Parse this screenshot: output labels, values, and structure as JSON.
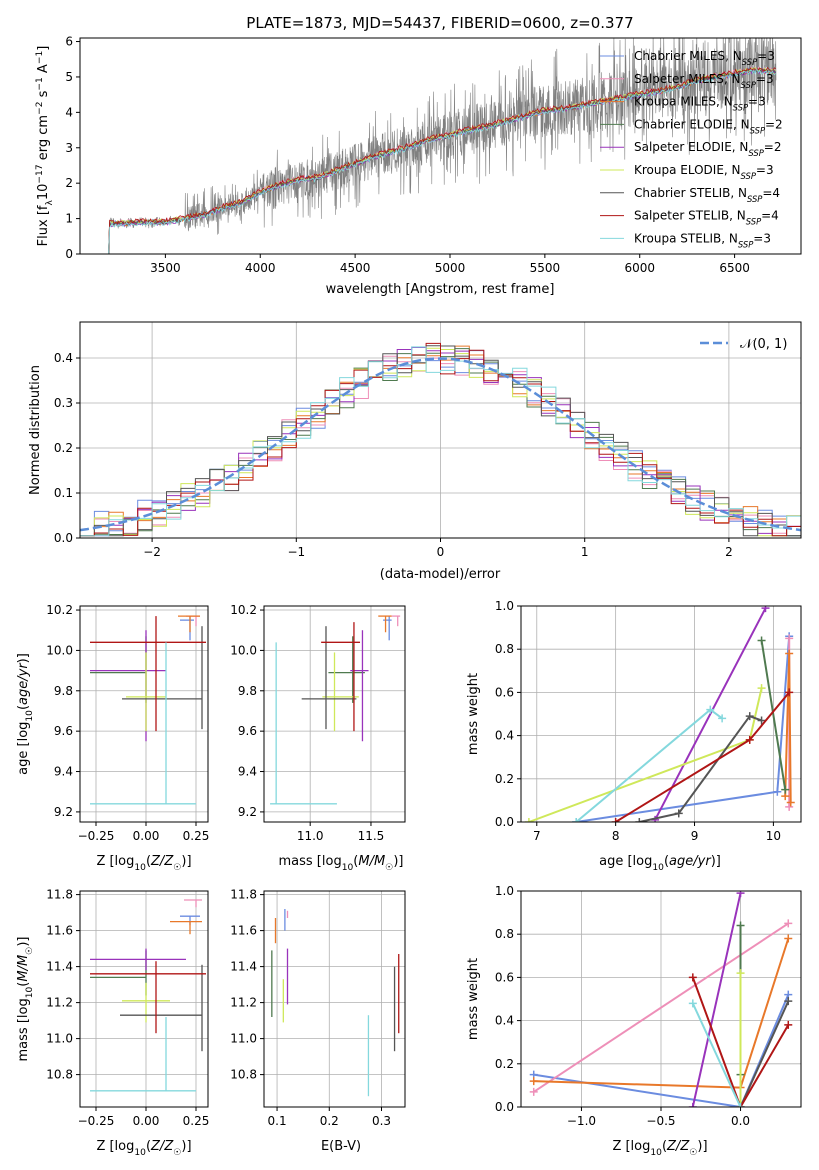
{
  "title": "PLATE=1873, MJD=54437, FIBERID=0600, z=0.377",
  "colors": {
    "grid": "#b0b0b0",
    "Chabrier MILES": "#6b8ce0",
    "Salpeter MILES": "#ee8fb8",
    "Kroupa MILES": "#e8782a",
    "Chabrier ELODIE": "#4f7a4f",
    "Salpeter ELODIE": "#9933bb",
    "Kroupa ELODIE": "#cfe85a",
    "Chabrier STELIB": "#555555",
    "Salpeter STELIB": "#b01616",
    "Kroupa STELIB": "#84d8dd",
    "data": "#808080",
    "normal": "#5b8ed8"
  },
  "legend_spectrum": [
    {
      "key": "Chabrier MILES",
      "label": "Chabrier MILES, N",
      "sub": "SSP",
      "tail": "=3"
    },
    {
      "key": "Salpeter MILES",
      "label": "Salpeter MILES, N",
      "sub": "SSP",
      "tail": "=3"
    },
    {
      "key": "Kroupa MILES",
      "label": "Kroupa MILES, N",
      "sub": "SSP",
      "tail": "=3"
    },
    {
      "key": "Chabrier ELODIE",
      "label": "Chabrier ELODIE, N",
      "sub": "SSP",
      "tail": "=2"
    },
    {
      "key": "Salpeter ELODIE",
      "label": "Salpeter ELODIE, N",
      "sub": "SSP",
      "tail": "=2"
    },
    {
      "key": "Kroupa ELODIE",
      "label": "Kroupa ELODIE, N",
      "sub": "SSP",
      "tail": "=3"
    },
    {
      "key": "Chabrier STELIB",
      "label": "Chabrier STELIB, N",
      "sub": "SSP",
      "tail": "=4"
    },
    {
      "key": "Salpeter STELIB",
      "label": "Salpeter STELIB, N",
      "sub": "SSP",
      "tail": "=4"
    },
    {
      "key": "Kroupa STELIB",
      "label": "Kroupa STELIB, N",
      "sub": "SSP",
      "tail": "=3"
    }
  ],
  "legend_hist": {
    "label": "𝒩(0, 1)"
  },
  "chart_data": [
    {
      "id": "spectrum",
      "type": "line",
      "title": "PLATE=1873, MJD=54437, FIBERID=0600, z=0.377",
      "xlabel": "wavelength [Angstrom, rest frame]",
      "ylabel": "Flux [f_λ 10^-17 erg cm^-2 s^-1 A^-1]",
      "xlim": [
        3050,
        6850
      ],
      "ylim": [
        0,
        6.1
      ],
      "xticks": [
        3500,
        4000,
        4500,
        5000,
        5500,
        6000,
        6500
      ],
      "yticks": [
        0,
        1,
        2,
        3,
        4,
        5,
        6
      ],
      "continuum": {
        "x": [
          3200,
          3400,
          3500,
          3600,
          3700,
          3800,
          3900,
          4000,
          4100,
          4200,
          4300,
          4400,
          4500,
          4600,
          4700,
          4800,
          4900,
          5000,
          5100,
          5200,
          5300,
          5400,
          5500,
          5600,
          5700,
          5800,
          5900,
          6000,
          6100,
          6200,
          6300,
          6400,
          6500,
          6600,
          6700
        ],
        "y": [
          0.85,
          0.9,
          0.9,
          1.0,
          1.1,
          1.3,
          1.45,
          1.75,
          1.95,
          2.1,
          2.15,
          2.35,
          2.55,
          2.75,
          2.9,
          3.05,
          3.25,
          3.35,
          3.5,
          3.6,
          3.75,
          3.9,
          4.05,
          4.1,
          4.2,
          4.3,
          4.4,
          4.5,
          4.6,
          4.7,
          4.9,
          5.0,
          5.1,
          5.2,
          5.15
        ]
      }
    },
    {
      "id": "residuals",
      "type": "bar",
      "xlabel": "(data-model)/error",
      "ylabel": "Normed distribution",
      "xlim": [
        -2.5,
        2.5
      ],
      "ylim": [
        0,
        0.48
      ],
      "xticks": [
        -2,
        -1,
        0,
        1,
        2
      ],
      "yticks": [
        0.0,
        0.1,
        0.2,
        0.3,
        0.4
      ],
      "bin_width": 0.1
    },
    {
      "id": "age_vs_Z",
      "type": "scatter",
      "xlabel": "Z [log10(Z/Z☉)]",
      "ylabel": "age [log10(age/yr)]",
      "xlim": [
        -0.33,
        0.31
      ],
      "ylim": [
        9.15,
        10.22
      ],
      "xticks": [
        -0.25,
        0.0,
        0.25
      ],
      "yticks": [
        9.2,
        9.4,
        9.6,
        9.8,
        10.0,
        10.2
      ],
      "errorbars": [
        {
          "key": "Chabrier MILES",
          "x": 0.22,
          "xerr": [
            0.05,
            0.02
          ],
          "y": 10.15,
          "yerr": [
            0.1,
            0.02
          ]
        },
        {
          "key": "Salpeter MILES",
          "x": 0.25,
          "xerr": [
            0.05,
            0.02
          ],
          "y": 10.17,
          "yerr": [
            0.05,
            0.0
          ]
        },
        {
          "key": "Kroupa MILES",
          "x": 0.22,
          "xerr": [
            0.06,
            0.05
          ],
          "y": 10.17,
          "yerr": [
            0.08,
            0.0
          ]
        },
        {
          "key": "Chabrier ELODIE",
          "x": 0.0,
          "xerr": [
            0.28,
            0.0
          ],
          "y": 9.89,
          "yerr": [
            0.15,
            0.18
          ]
        },
        {
          "key": "Salpeter ELODIE",
          "x": 0.0,
          "xerr": [
            0.28,
            0.1
          ],
          "y": 9.9,
          "yerr": [
            0.35,
            0.2
          ]
        },
        {
          "key": "Kroupa ELODIE",
          "x": 0.0,
          "xerr": [
            0.1,
            0.1
          ],
          "y": 9.77,
          "yerr": [
            0.17,
            0.22
          ]
        },
        {
          "key": "Chabrier STELIB",
          "x": 0.28,
          "xerr": [
            0.4,
            0.0
          ],
          "y": 9.76,
          "yerr": [
            0.15,
            0.36
          ]
        },
        {
          "key": "Salpeter STELIB",
          "x": 0.05,
          "xerr": [
            0.33,
            0.25
          ],
          "y": 10.04,
          "yerr": [
            0.44,
            0.13
          ]
        },
        {
          "key": "Kroupa STELIB",
          "x": 0.1,
          "xerr": [
            0.38,
            0.15
          ],
          "y": 9.24,
          "yerr": [
            0.0,
            0.8
          ]
        }
      ]
    },
    {
      "id": "age_vs_mass",
      "type": "scatter",
      "xlabel": "mass [log10(M/M☉)]",
      "xlim": [
        10.62,
        11.78
      ],
      "ylim": [
        9.15,
        10.22
      ],
      "xticks": [
        11.0,
        11.5
      ],
      "yticks": [
        9.2,
        9.4,
        9.6,
        9.8,
        10.0,
        10.2
      ],
      "errorbars": [
        {
          "key": "Chabrier MILES",
          "x": 11.65,
          "xerr": [
            0.05,
            0.02
          ],
          "y": 10.15,
          "yerr": [
            0.1,
            0.02
          ]
        },
        {
          "key": "Salpeter MILES",
          "x": 11.72,
          "xerr": [
            0.05,
            0.02
          ],
          "y": 10.17,
          "yerr": [
            0.05,
            0.0
          ]
        },
        {
          "key": "Kroupa MILES",
          "x": 11.62,
          "xerr": [
            0.06,
            0.05
          ],
          "y": 10.17,
          "yerr": [
            0.08,
            0.0
          ]
        },
        {
          "key": "Chabrier ELODIE",
          "x": 11.35,
          "xerr": [
            0.2,
            0.1
          ],
          "y": 9.89,
          "yerr": [
            0.15,
            0.18
          ]
        },
        {
          "key": "Salpeter ELODIE",
          "x": 11.43,
          "xerr": [
            0.1,
            0.05
          ],
          "y": 9.9,
          "yerr": [
            0.35,
            0.2
          ]
        },
        {
          "key": "Kroupa ELODIE",
          "x": 11.2,
          "xerr": [
            0.1,
            0.2
          ],
          "y": 9.77,
          "yerr": [
            0.17,
            0.22
          ]
        },
        {
          "key": "Chabrier STELIB",
          "x": 11.13,
          "xerr": [
            0.2,
            0.25
          ],
          "y": 9.76,
          "yerr": [
            0.15,
            0.36
          ]
        },
        {
          "key": "Salpeter STELIB",
          "x": 11.36,
          "xerr": [
            0.27,
            0.05
          ],
          "y": 10.04,
          "yerr": [
            0.44,
            0.1
          ]
        },
        {
          "key": "Kroupa STELIB",
          "x": 10.72,
          "xerr": [
            0.05,
            0.5
          ],
          "y": 9.24,
          "yerr": [
            0.0,
            0.8
          ]
        }
      ]
    },
    {
      "id": "weight_vs_age",
      "type": "line",
      "xlabel": "age [log10(age/yr)]",
      "ylabel": "mass weight",
      "xlim": [
        6.8,
        10.35
      ],
      "ylim": [
        0,
        1.0
      ],
      "xticks": [
        7,
        8,
        9,
        10
      ],
      "yticks": [
        0.0,
        0.2,
        0.4,
        0.6,
        0.8,
        1.0
      ],
      "series": [
        {
          "key": "Chabrier MILES",
          "x": [
            7.5,
            10.05,
            10.2
          ],
          "y": [
            0.0,
            0.14,
            0.86
          ]
        },
        {
          "key": "Salpeter MILES",
          "x": [
            10.2,
            10.2
          ],
          "y": [
            0.07,
            0.85
          ]
        },
        {
          "key": "Kroupa MILES",
          "x": [
            10.15,
            10.2,
            10.22
          ],
          "y": [
            0.12,
            0.78,
            0.09
          ]
        },
        {
          "key": "Chabrier ELODIE",
          "x": [
            9.85,
            10.15
          ],
          "y": [
            0.84,
            0.15
          ]
        },
        {
          "key": "Salpeter ELODIE",
          "x": [
            8.5,
            9.9
          ],
          "y": [
            0.01,
            0.99
          ]
        },
        {
          "key": "Kroupa ELODIE",
          "x": [
            6.9,
            9.7,
            9.85
          ],
          "y": [
            0.0,
            0.38,
            0.62
          ]
        },
        {
          "key": "Chabrier STELIB",
          "x": [
            8.3,
            8.8,
            9.7,
            9.85
          ],
          "y": [
            0.0,
            0.04,
            0.49,
            0.47
          ]
        },
        {
          "key": "Salpeter STELIB",
          "x": [
            8.0,
            9.7,
            10.2
          ],
          "y": [
            0.0,
            0.38,
            0.6
          ]
        },
        {
          "key": "Kroupa STELIB",
          "x": [
            7.5,
            9.2,
            9.35
          ],
          "y": [
            0.0,
            0.52,
            0.48
          ]
        }
      ]
    },
    {
      "id": "mass_vs_Z",
      "type": "scatter",
      "xlabel": "Z [log10(Z/Z☉)]",
      "ylabel": "mass [log10(M/M☉)]",
      "xlim": [
        -0.33,
        0.31
      ],
      "ylim": [
        10.62,
        11.82
      ],
      "xticks": [
        -0.25,
        0.0,
        0.25
      ],
      "yticks": [
        10.8,
        11.0,
        11.2,
        11.4,
        11.6,
        11.8
      ],
      "errorbars": [
        {
          "key": "Chabrier MILES",
          "x": 0.22,
          "xerr": [
            0.05,
            0.05
          ],
          "y": 11.68,
          "yerr": [
            0.05,
            0.0
          ]
        },
        {
          "key": "Salpeter MILES",
          "x": 0.25,
          "xerr": [
            0.06,
            0.03
          ],
          "y": 11.77,
          "yerr": [
            0.04,
            0.0
          ]
        },
        {
          "key": "Kroupa MILES",
          "x": 0.22,
          "xerr": [
            0.1,
            0.06
          ],
          "y": 11.65,
          "yerr": [
            0.07,
            0.0
          ]
        },
        {
          "key": "Chabrier ELODIE",
          "x": 0.0,
          "xerr": [
            0.28,
            0.0
          ],
          "y": 11.34,
          "yerr": [
            0.1,
            0.15
          ]
        },
        {
          "key": "Salpeter ELODIE",
          "x": 0.0,
          "xerr": [
            0.28,
            0.2
          ],
          "y": 11.44,
          "yerr": [
            0.06,
            0.06
          ]
        },
        {
          "key": "Kroupa ELODIE",
          "x": 0.0,
          "xerr": [
            0.12,
            0.12
          ],
          "y": 11.21,
          "yerr": [
            0.12,
            0.1
          ]
        },
        {
          "key": "Chabrier STELIB",
          "x": 0.28,
          "xerr": [
            0.41,
            0.0
          ],
          "y": 11.13,
          "yerr": [
            0.2,
            0.28
          ]
        },
        {
          "key": "Salpeter STELIB",
          "x": 0.05,
          "xerr": [
            0.33,
            0.25
          ],
          "y": 11.36,
          "yerr": [
            0.33,
            0.07
          ]
        },
        {
          "key": "Kroupa STELIB",
          "x": 0.1,
          "xerr": [
            0.38,
            0.15
          ],
          "y": 10.71,
          "yerr": [
            0.0,
            0.41
          ]
        }
      ]
    },
    {
      "id": "mass_vs_ebv",
      "type": "scatter",
      "xlabel": "E(B-V)",
      "xlim": [
        0.075,
        0.345
      ],
      "ylim": [
        10.62,
        11.82
      ],
      "xticks": [
        0.1,
        0.2,
        0.3
      ],
      "yticks": [
        10.8,
        11.0,
        11.2,
        11.4,
        11.6,
        11.8
      ],
      "errorbars": [
        {
          "key": "Chabrier MILES",
          "x": 0.115,
          "y": 11.65,
          "yerr": [
            0.05,
            0.07
          ]
        },
        {
          "key": "Salpeter MILES",
          "x": 0.12,
          "y": 11.69,
          "yerr": [
            0.02,
            0.02
          ]
        },
        {
          "key": "Kroupa MILES",
          "x": 0.097,
          "y": 11.6,
          "yerr": [
            0.07,
            0.07
          ]
        },
        {
          "key": "Chabrier ELODIE",
          "x": 0.09,
          "y": 11.34,
          "yerr": [
            0.22,
            0.15
          ]
        },
        {
          "key": "Salpeter ELODIE",
          "x": 0.12,
          "y": 11.3,
          "yerr": [
            0.11,
            0.2
          ]
        },
        {
          "key": "Kroupa ELODIE",
          "x": 0.112,
          "y": 11.21,
          "yerr": [
            0.12,
            0.12
          ]
        },
        {
          "key": "Chabrier STELIB",
          "x": 0.325,
          "y": 11.22,
          "yerr": [
            0.29,
            0.18
          ]
        },
        {
          "key": "Salpeter STELIB",
          "x": 0.333,
          "y": 11.25,
          "yerr": [
            0.22,
            0.22
          ]
        },
        {
          "key": "Kroupa STELIB",
          "x": 0.275,
          "y": 10.9,
          "yerr": [
            0.22,
            0.23
          ]
        }
      ]
    },
    {
      "id": "weight_vs_Z",
      "type": "line",
      "xlabel": "Z [log10(Z/Z☉)]",
      "ylabel": "mass weight",
      "xlim": [
        -1.38,
        0.38
      ],
      "ylim": [
        0,
        1.0
      ],
      "xticks": [
        -1.0,
        -0.5,
        0.0
      ],
      "yticks": [
        0.0,
        0.2,
        0.4,
        0.6,
        0.8,
        1.0
      ],
      "series": [
        {
          "key": "Chabrier MILES",
          "x": [
            -1.3,
            0.0,
            0.3
          ],
          "y": [
            0.15,
            0.0,
            0.52
          ]
        },
        {
          "key": "Salpeter MILES",
          "x": [
            -1.3,
            0.3
          ],
          "y": [
            0.07,
            0.85
          ]
        },
        {
          "key": "Kroupa MILES",
          "x": [
            -1.3,
            0.0,
            0.3
          ],
          "y": [
            0.12,
            0.09,
            0.78
          ]
        },
        {
          "key": "Chabrier ELODIE",
          "x": [
            0.0,
            0.0
          ],
          "y": [
            0.15,
            0.84
          ]
        },
        {
          "key": "Salpeter ELODIE",
          "x": [
            -0.3,
            0.0
          ],
          "y": [
            0.0,
            0.99
          ]
        },
        {
          "key": "Kroupa ELODIE",
          "x": [
            0.0,
            0.0
          ],
          "y": [
            0.0,
            0.62
          ]
        },
        {
          "key": "Chabrier STELIB",
          "x": [
            0.0,
            0.3
          ],
          "y": [
            0.0,
            0.49
          ]
        },
        {
          "key": "Salpeter STELIB",
          "x": [
            -0.3,
            0.0,
            0.3
          ],
          "y": [
            0.6,
            0.0,
            0.38
          ]
        },
        {
          "key": "Kroupa STELIB",
          "x": [
            -0.3,
            0.0
          ],
          "y": [
            0.48,
            0.0
          ]
        }
      ]
    }
  ]
}
